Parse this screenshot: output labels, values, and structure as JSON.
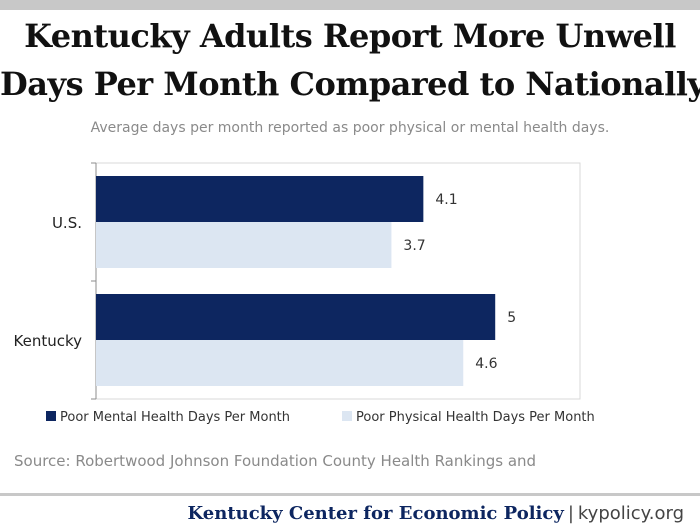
{
  "title": {
    "line1": "Kentucky Adults Report More Unwell",
    "line2": "Days Per Month Compared to Nationally"
  },
  "subtitle": "Average days per month reported as poor physical or mental health days.",
  "source": "Source: Robertwood Johnson Foundation County Health Rankings and",
  "footer": {
    "org": "Kentucky Center for Economic Policy",
    "separator": "|",
    "site": "kypolicy.org"
  },
  "colors": {
    "mental": "#0d2660",
    "physical": "#dce6f2"
  },
  "chart_data": {
    "type": "bar",
    "orientation": "horizontal",
    "categories": [
      "U.S.",
      "Kentucky"
    ],
    "series": [
      {
        "name": "Poor Mental Health Days Per Month",
        "values": [
          4.1,
          5
        ]
      },
      {
        "name": "Poor Physical Health Days Per Month",
        "values": [
          3.7,
          4.6
        ]
      }
    ],
    "data_labels": [
      [
        "4.1",
        "5"
      ],
      [
        "3.7",
        "4.6"
      ]
    ],
    "xlim": [
      0,
      6
    ],
    "grid": false,
    "legend_position": "bottom"
  }
}
